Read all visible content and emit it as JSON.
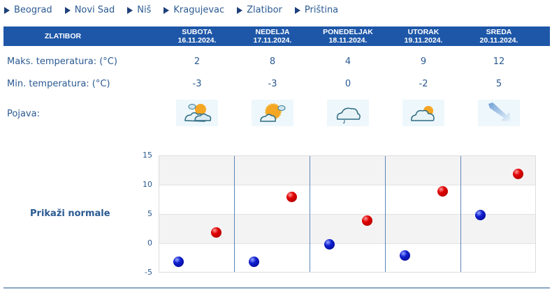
{
  "nav": {
    "items": [
      {
        "label": "Beograd"
      },
      {
        "label": "Novi Sad"
      },
      {
        "label": "Niš"
      },
      {
        "label": "Kragujevac"
      },
      {
        "label": "Zlatibor"
      },
      {
        "label": "Priština"
      }
    ]
  },
  "table": {
    "location": "ZLATIBOR",
    "days": [
      {
        "name": "SUBOTA",
        "date": "16.11.2024.",
        "max": "2",
        "min": "-3",
        "icon": "partly-cloudy-icon"
      },
      {
        "name": "NEDELJA",
        "date": "17.11.2024.",
        "max": "8",
        "min": "-3",
        "icon": "mostly-sunny-icon"
      },
      {
        "name": "PONEDELJAK",
        "date": "18.11.2024.",
        "max": "4",
        "min": "0",
        "icon": "cloudy-drizzle-icon"
      },
      {
        "name": "UTORAK",
        "date": "19.11.2024.",
        "max": "9",
        "min": "-2",
        "icon": "cloudy-sun-icon"
      },
      {
        "name": "SREDA",
        "date": "20.11.2024.",
        "max": "12",
        "min": "5",
        "icon": "wind-arrow-icon"
      }
    ],
    "labels": {
      "max": "Maks. temperatura: (°C)",
      "min": "Min. temperatura: (°C)",
      "phenomenon": "Pojava:"
    }
  },
  "normals_link": "Prikaži normale",
  "colors": {
    "header_bg": "#1e57a8",
    "text": "#2b5a92",
    "max_dot": "#e00000",
    "min_dot": "#1020d0"
  },
  "chart_data": {
    "type": "scatter",
    "title": "",
    "categories": [
      "16.11.2024.",
      "17.11.2024.",
      "18.11.2024.",
      "19.11.2024.",
      "20.11.2024."
    ],
    "series": [
      {
        "name": "Min. temperatura",
        "color": "#1020d0",
        "values": [
          -3,
          -3,
          0,
          -2,
          5
        ]
      },
      {
        "name": "Maks. temperatura",
        "color": "#e00000",
        "values": [
          2,
          8,
          4,
          9,
          12
        ]
      }
    ],
    "xlabel": "",
    "ylabel": "",
    "ylim": [
      -5,
      15
    ],
    "yticks": [
      "15",
      "10",
      "5",
      "0",
      "-5"
    ],
    "grid": true,
    "legend": "none"
  }
}
